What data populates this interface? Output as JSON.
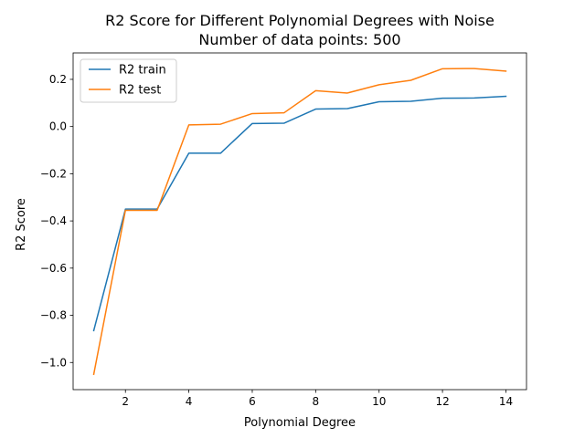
{
  "chart_data": {
    "type": "line",
    "title": "R2 Score for Different Polynomial Degrees with Noise",
    "subtitle": "Number of data points: 500",
    "xlabel": "Polynomial Degree",
    "ylabel": "R2 Score",
    "xlim": [
      0.35,
      14.65
    ],
    "ylim": [
      -1.115,
      0.312
    ],
    "xticks": [
      2,
      4,
      6,
      8,
      10,
      12,
      14
    ],
    "yticks": [
      -1.0,
      -0.8,
      -0.6,
      -0.4,
      -0.2,
      0.0,
      0.2
    ],
    "ytick_labels": [
      "−1.0",
      "−0.8",
      "−0.6",
      "−0.4",
      "−0.2",
      "0.0",
      "0.2"
    ],
    "grid": false,
    "legend_position": "top-left",
    "x": [
      1,
      2,
      3,
      4,
      5,
      6,
      7,
      8,
      9,
      10,
      11,
      12,
      13,
      14
    ],
    "series": [
      {
        "name": "R2 train",
        "color": "#1f77b4",
        "values": [
          -0.865,
          -0.35,
          -0.35,
          -0.113,
          -0.113,
          0.013,
          0.014,
          0.074,
          0.076,
          0.105,
          0.107,
          0.12,
          0.121,
          0.128
        ]
      },
      {
        "name": "R2 test",
        "color": "#ff7f0e",
        "values": [
          -1.05,
          -0.355,
          -0.355,
          0.007,
          0.01,
          0.055,
          0.058,
          0.152,
          0.142,
          0.177,
          0.196,
          0.245,
          0.246,
          0.235
        ]
      }
    ]
  }
}
